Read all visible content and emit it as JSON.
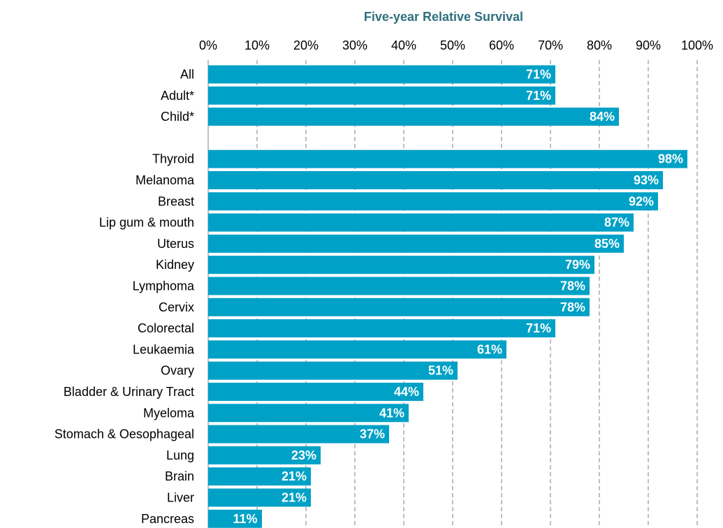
{
  "chart_data": {
    "type": "bar",
    "orientation": "horizontal",
    "title": "Five-year Relative Survival",
    "xlabel": "",
    "ylabel": "",
    "x_ticks": [
      "0%",
      "10%",
      "20%",
      "30%",
      "40%",
      "50%",
      "60%",
      "70%",
      "80%",
      "90%",
      "100%"
    ],
    "xlim": [
      0,
      100
    ],
    "grid": "vertical dashed",
    "legend": "none",
    "colors": {
      "bar": "#00a1c6",
      "title": "#2e6f7e",
      "grid": "#7f7f7f",
      "label": "#ffffff"
    },
    "groups": [
      {
        "categories": [
          "All",
          "Adult*",
          "Child*"
        ],
        "values": [
          71,
          71,
          84
        ],
        "labels": [
          "71%",
          "71%",
          "84%"
        ]
      },
      {
        "categories": [
          "Thyroid",
          "Melanoma",
          "Breast",
          "Lip gum & mouth",
          "Uterus",
          "Kidney",
          "Lymphoma",
          "Cervix",
          "Colorectal",
          "Leukaemia",
          "Ovary",
          "Bladder & Urinary Tract",
          "Myeloma",
          "Stomach & Oesophageal",
          "Lung",
          "Brain",
          "Liver",
          "Pancreas"
        ],
        "values": [
          98,
          93,
          92,
          87,
          85,
          79,
          78,
          78,
          71,
          61,
          51,
          44,
          41,
          37,
          23,
          21,
          21,
          11
        ],
        "labels": [
          "98%",
          "93%",
          "92%",
          "87%",
          "85%",
          "79%",
          "78%",
          "78%",
          "71%",
          "61%",
          "51%",
          "44%",
          "41%",
          "37%",
          "23%",
          "21%",
          "21%",
          "11%"
        ]
      }
    ]
  }
}
